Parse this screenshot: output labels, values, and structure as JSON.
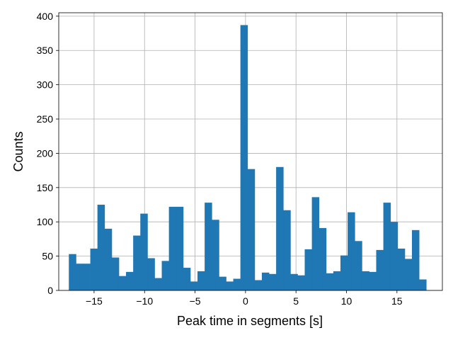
{
  "chart_data": {
    "type": "bar",
    "title": "",
    "xlabel": "Peak time in segments [s]",
    "ylabel": "Counts",
    "xlim": [
      -18.5,
      19.5
    ],
    "ylim": [
      0,
      405
    ],
    "x_ticks": [
      -15,
      -10,
      -5,
      0,
      5,
      10,
      15
    ],
    "x_tick_labels": [
      "−15",
      "−10",
      "−5",
      "0",
      "5",
      "10",
      "15"
    ],
    "y_ticks": [
      0,
      50,
      100,
      150,
      200,
      250,
      300,
      350,
      400
    ],
    "y_tick_labels": [
      "0",
      "50",
      "100",
      "150",
      "200",
      "250",
      "300",
      "350",
      "400"
    ],
    "grid": true,
    "color": "#1f77b4",
    "bin_range": [
      -17.5,
      17.9
    ],
    "values": [
      53,
      39,
      39,
      61,
      125,
      90,
      48,
      21,
      27,
      80,
      112,
      47,
      18,
      43,
      122,
      122,
      33,
      13,
      28,
      128,
      103,
      20,
      13,
      17,
      387,
      177,
      15,
      26,
      24,
      180,
      117,
      24,
      22,
      60,
      136,
      91,
      25,
      28,
      51,
      114,
      72,
      28,
      27,
      59,
      128,
      100,
      61,
      46,
      88,
      16
    ]
  }
}
